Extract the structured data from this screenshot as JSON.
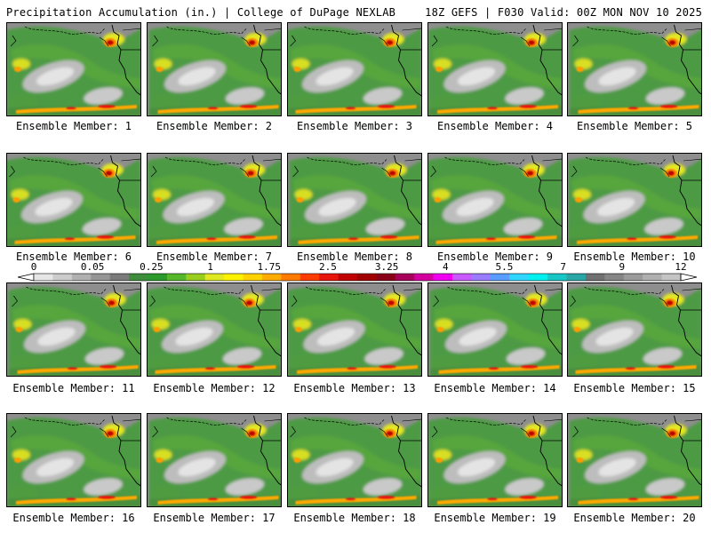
{
  "header": {
    "title": "Precipitation Accumulation (in.) | College of DuPage NEXLAB",
    "run_info": "18Z GEFS | F030 Valid: 00Z MON NOV 10 2025"
  },
  "members": [
    {
      "label": "Ensemble Member: 1"
    },
    {
      "label": "Ensemble Member: 2"
    },
    {
      "label": "Ensemble Member: 3"
    },
    {
      "label": "Ensemble Member: 4"
    },
    {
      "label": "Ensemble Member: 5"
    },
    {
      "label": "Ensemble Member: 6"
    },
    {
      "label": "Ensemble Member: 7"
    },
    {
      "label": "Ensemble Member: 8"
    },
    {
      "label": "Ensemble Member: 9"
    },
    {
      "label": "Ensemble Member: 10"
    },
    {
      "label": "Ensemble Member: 11"
    },
    {
      "label": "Ensemble Member: 12"
    },
    {
      "label": "Ensemble Member: 13"
    },
    {
      "label": "Ensemble Member: 14"
    },
    {
      "label": "Ensemble Member: 15"
    },
    {
      "label": "Ensemble Member: 16"
    },
    {
      "label": "Ensemble Member: 17"
    },
    {
      "label": "Ensemble Member: 18"
    },
    {
      "label": "Ensemble Member: 19"
    },
    {
      "label": "Ensemble Member: 20"
    }
  ],
  "colorbar": {
    "tick_labels": [
      "0",
      "0.05",
      "0.25",
      "1",
      "1.75",
      "2.5",
      "3.25",
      "4",
      "5.5",
      "7",
      "9",
      "12"
    ],
    "colors": [
      "#e6e6e6",
      "#cccccc",
      "#b0b0b0",
      "#969696",
      "#7b7b7b",
      "#3d8d3d",
      "#2a9a2a",
      "#55b82a",
      "#9ace1e",
      "#e0e821",
      "#fff200",
      "#ffd200",
      "#ffab00",
      "#ff7b00",
      "#ff3c00",
      "#e8150a",
      "#c00000",
      "#a00000",
      "#8a0018",
      "#a8005a",
      "#d4009d",
      "#f000f0",
      "#c85aff",
      "#9a7dff",
      "#5a9cff",
      "#2fd6ff",
      "#00f0f0",
      "#19c6c6",
      "#2aa6a6",
      "#707070",
      "#858585",
      "#9a9a9a",
      "#afafaf",
      "#c4c4c4"
    ]
  }
}
